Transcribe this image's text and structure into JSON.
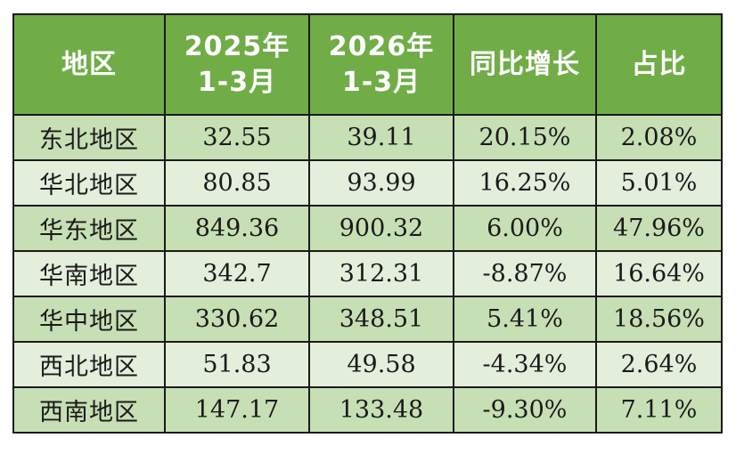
{
  "chart_data": {
    "type": "table",
    "columns": [
      "地区",
      "2025年 1-3月",
      "2026年 1-3月",
      "同比增长",
      "占比"
    ],
    "header_lines": [
      [
        "地区"
      ],
      [
        "2025年",
        "1-3月"
      ],
      [
        "2026年",
        "1-3月"
      ],
      [
        "同比增长"
      ],
      [
        "占比"
      ]
    ],
    "rows": [
      [
        "东北地区",
        "32.55",
        "39.11",
        "20.15%",
        "2.08%"
      ],
      [
        "华北地区",
        "80.85",
        "93.99",
        "16.25%",
        "5.01%"
      ],
      [
        "华东地区",
        "849.36",
        "900.32",
        "6.00%",
        "47.96%"
      ],
      [
        "华南地区",
        "342.7",
        "312.31",
        "-8.87%",
        "16.64%"
      ],
      [
        "华中地区",
        "330.62",
        "348.51",
        "5.41%",
        "18.56%"
      ],
      [
        "西北地区",
        "51.83",
        "49.58",
        "-4.34%",
        "2.64%"
      ],
      [
        "西南地区",
        "147.17",
        "133.48",
        "-9.30%",
        "7.11%"
      ]
    ],
    "colors": {
      "header_bg": "#70ad47",
      "header_text": "#ffffff",
      "row_dark": "#c6dfb4",
      "row_light": "#e3eedb",
      "border": "#1a1a1a"
    }
  }
}
